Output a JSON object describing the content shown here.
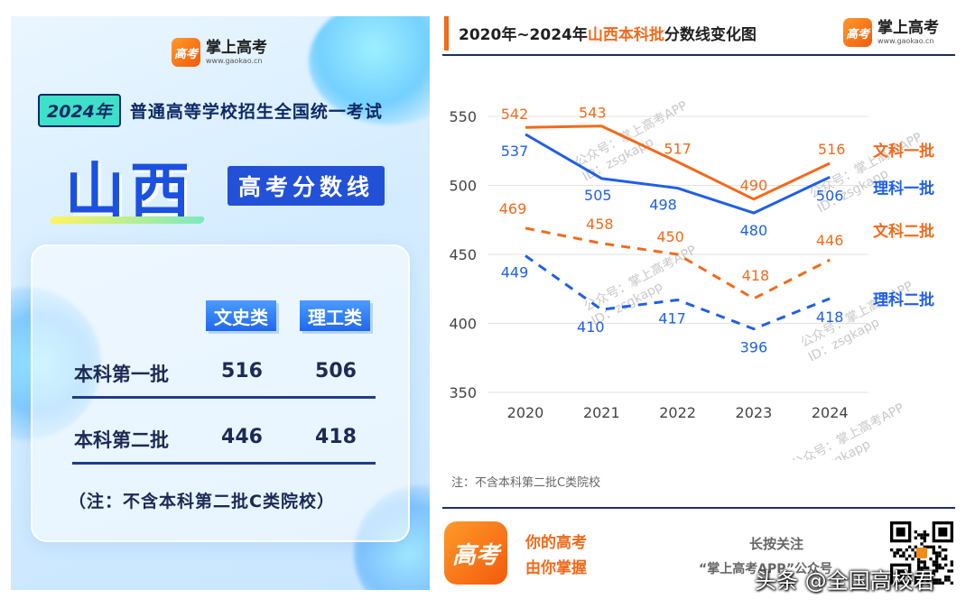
{
  "brand": {
    "name": "掌上高考",
    "url": "www.gaokao.cn",
    "logo_text": "高考"
  },
  "poster": {
    "exam_year": "2024年",
    "exam_title": "普通高等学校招生全国统一考试",
    "province": "山西",
    "subtitle": "高考分数线",
    "col_headers": [
      "文史类",
      "理工类"
    ],
    "rows": [
      {
        "label": "本科第一批",
        "wenshi": "516",
        "ligong": "506"
      },
      {
        "label": "本科第二批",
        "wenshi": "446",
        "ligong": "418"
      }
    ],
    "note": "（注：不含本科第二批C类院校）"
  },
  "chart_heading": {
    "prefix": "2020年~2024年",
    "highlight": "山西本科批",
    "suffix": "分数线变化图"
  },
  "chart_data": {
    "type": "line",
    "x": [
      "2020",
      "2021",
      "2022",
      "2023",
      "2024"
    ],
    "yticks": [
      350,
      400,
      450,
      500,
      550
    ],
    "ylim": [
      350,
      560
    ],
    "grid": true,
    "series": [
      {
        "name": "文科一批",
        "values": [
          542,
          543,
          517,
          490,
          516
        ],
        "color": "#f26a1b",
        "dashed": false
      },
      {
        "name": "理科一批",
        "values": [
          537,
          505,
          498,
          480,
          506
        ],
        "color": "#1f5fe8",
        "dashed": false
      },
      {
        "name": "文科二批",
        "values": [
          469,
          458,
          450,
          418,
          446
        ],
        "color": "#f26a1b",
        "dashed": true
      },
      {
        "name": "理科二批",
        "values": [
          449,
          410,
          417,
          396,
          418
        ],
        "color": "#1f5fe8",
        "dashed": true
      }
    ],
    "watermark": [
      "公众号：掌上高考APP",
      "ID：zsgkapp"
    ]
  },
  "footnote": "注：不含本科第二批C类院校",
  "footer": {
    "slogan_1": "你的高考",
    "slogan_2": "由你掌握",
    "follow_1": "长按关注",
    "follow_2": "“掌上高考APP”公众号"
  },
  "toutiao_watermark": "头条 @全国高校君"
}
